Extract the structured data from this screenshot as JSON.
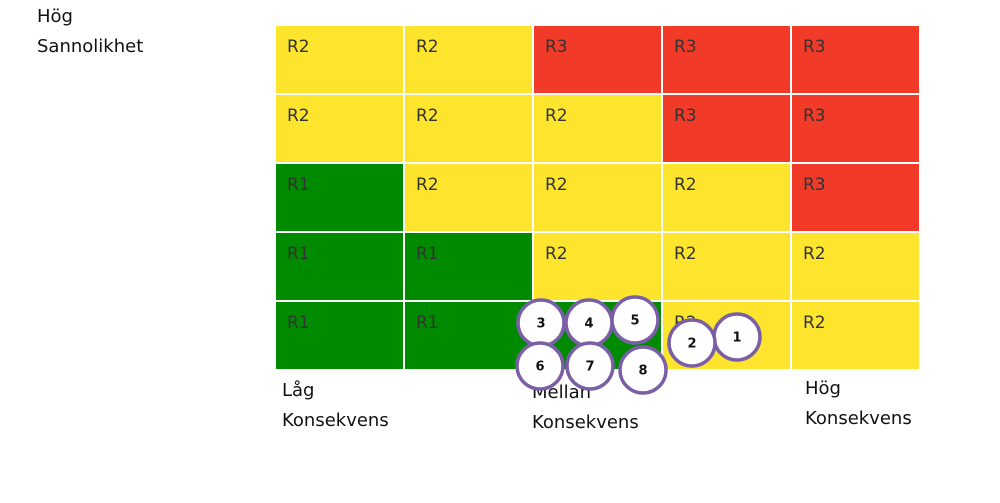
{
  "y_axis_label": [
    "Hög",
    "Sannolikhet"
  ],
  "matrix": {
    "rows": [
      [
        {
          "label": "R2",
          "color": "#fde42d"
        },
        {
          "label": "R2",
          "color": "#fde42d"
        },
        {
          "label": "R3",
          "color": "#f23a29"
        },
        {
          "label": "R3",
          "color": "#f23a29"
        },
        {
          "label": "R3",
          "color": "#f23a29"
        }
      ],
      [
        {
          "label": "R2",
          "color": "#fde42d"
        },
        {
          "label": "R2",
          "color": "#fde42d"
        },
        {
          "label": "R2",
          "color": "#fde42d"
        },
        {
          "label": "R3",
          "color": "#f23a29"
        },
        {
          "label": "R3",
          "color": "#f23a29"
        }
      ],
      [
        {
          "label": "R1",
          "color": "#008a00"
        },
        {
          "label": "R2",
          "color": "#fde42d"
        },
        {
          "label": "R2",
          "color": "#fde42d"
        },
        {
          "label": "R2",
          "color": "#fde42d"
        },
        {
          "label": "R3",
          "color": "#f23a29"
        }
      ],
      [
        {
          "label": "R1",
          "color": "#008a00"
        },
        {
          "label": "R1",
          "color": "#008a00"
        },
        {
          "label": "R2",
          "color": "#fde42d"
        },
        {
          "label": "R2",
          "color": "#fde42d"
        },
        {
          "label": "R2",
          "color": "#fde42d"
        }
      ],
      [
        {
          "label": "R1",
          "color": "#008a00"
        },
        {
          "label": "R1",
          "color": "#008a00"
        },
        {
          "label": "R1",
          "color": "#008a00"
        },
        {
          "label": "R2",
          "color": "#fde42d"
        },
        {
          "label": "R2",
          "color": "#fde42d"
        }
      ]
    ]
  },
  "x_axis_labels": [
    [
      "Låg",
      "Konsekvens"
    ],
    [
      "Mellan",
      "Konsekvens"
    ],
    [
      "Hög",
      "Konsekvens"
    ]
  ],
  "risks": [
    "1",
    "2",
    "3",
    "4",
    "5",
    "6",
    "7",
    "8"
  ]
}
